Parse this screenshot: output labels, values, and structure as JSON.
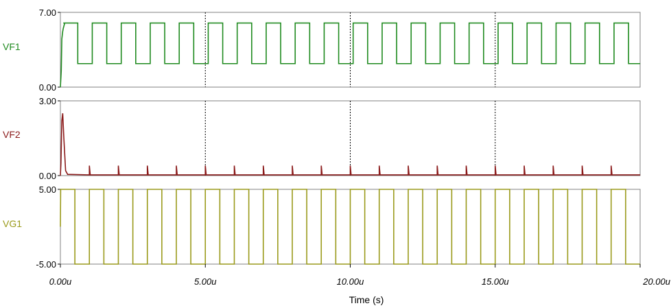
{
  "chart_data": {
    "type": "line",
    "xlabel": "Time (s)",
    "x_tick_labels": [
      "0.00u",
      "5.00u",
      "10.00u",
      "15.00u",
      "20.00u"
    ],
    "x_ticks": [
      0,
      5,
      10,
      15,
      20
    ],
    "xlim": [
      0,
      20
    ],
    "x_unit": "us",
    "vertical_grid_dashed_at": [
      5,
      10,
      15
    ],
    "panels": [
      {
        "name": "VF1",
        "color": "#1e8a1e",
        "ylim": [
          0,
          7
        ],
        "y_tick_labels": [
          "7.00",
          "0.00"
        ],
        "y_ticks": [
          7,
          0
        ],
        "waveform": {
          "kind": "square",
          "start": 0.1,
          "period": 1.0,
          "high_duration": 0.5,
          "high": 6.0,
          "low": 2.2,
          "initial_rise": [
            [
              0,
              0
            ],
            [
              0.03,
              1.5
            ],
            [
              0.05,
              4.5
            ],
            [
              0.08,
              5.2
            ],
            [
              0.1,
              5.5
            ],
            [
              0.15,
              6.0
            ]
          ],
          "end": 20
        }
      },
      {
        "name": "VF2",
        "color": "#8b1a1a",
        "ylim": [
          0,
          3
        ],
        "y_tick_labels": [
          "3.00",
          "0.00"
        ],
        "y_ticks": [
          3,
          0
        ],
        "waveform": {
          "kind": "spikes",
          "initial_pulse": [
            [
              0,
              0
            ],
            [
              0.02,
              0.5
            ],
            [
              0.05,
              2.2
            ],
            [
              0.08,
              2.5
            ],
            [
              0.12,
              1.5
            ],
            [
              0.18,
              0.2
            ],
            [
              0.25,
              0.05
            ]
          ],
          "spike_start": 1.0,
          "period": 1.0,
          "spike_height": 0.4,
          "baseline": 0.03,
          "end": 20
        }
      },
      {
        "name": "VG1",
        "color": "#9a9a1a",
        "ylim": [
          -5,
          5
        ],
        "y_tick_labels": [
          "5.00",
          "-5.00"
        ],
        "y_ticks": [
          5,
          -5
        ],
        "waveform": {
          "kind": "square",
          "start": 0.5,
          "period": 1.0,
          "high_duration": 0.5,
          "high": 5.0,
          "low": -5.0,
          "initial_segment": [
            [
              0,
              0
            ],
            [
              0.01,
              5.0
            ]
          ],
          "end": 20
        }
      }
    ]
  }
}
